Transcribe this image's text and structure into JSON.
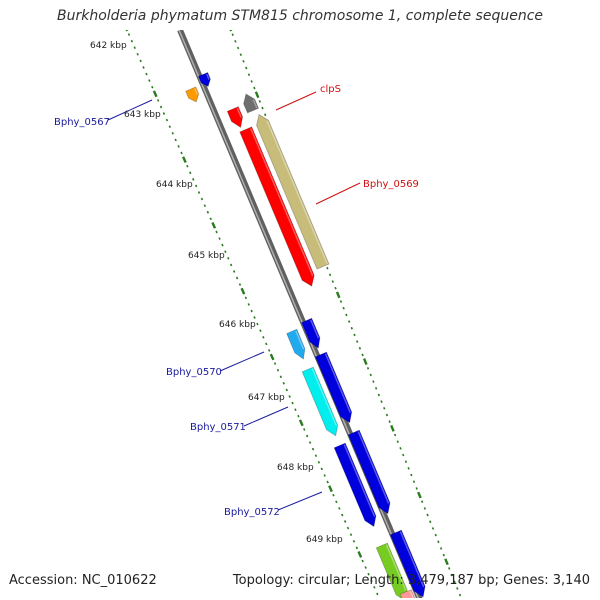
{
  "title": "Burkholderia phymatum STM815 chromosome 1, complete sequence",
  "accession": "Accession: NC_010622",
  "stats": "Topology: circular; Length: 3,479,187 bp; Genes: 3,140",
  "colors": {
    "backbone": "#808080",
    "tick": "#2a7a1e",
    "label_blue": "#1a1a9c",
    "label_red": "#d01010",
    "clps": "#6e6e6e",
    "bphy_0569": "#c8bc7a",
    "red_gene": "#ff0000",
    "orange_gene": "#ff9900",
    "blue_gene": "#0000dd",
    "light_blue_gene": "#22aaee",
    "cyan_gene": "#00eeee",
    "green_gene": "#77cc22",
    "pink_gene": "#ff9999"
  },
  "kbp_labels": [
    "642 kbp",
    "643 kbp",
    "644 kbp",
    "645 kbp",
    "646 kbp",
    "647 kbp",
    "648 kbp",
    "649 kbp"
  ],
  "gene_labels": [
    {
      "text": "clpS",
      "color": "red"
    },
    {
      "text": "Bphy_0569",
      "color": "red"
    },
    {
      "text": "Bphy_0567",
      "color": "blue"
    },
    {
      "text": "Bphy_0570",
      "color": "blue"
    },
    {
      "text": "Bphy_0571",
      "color": "blue"
    },
    {
      "text": "Bphy_0572",
      "color": "blue"
    }
  ]
}
